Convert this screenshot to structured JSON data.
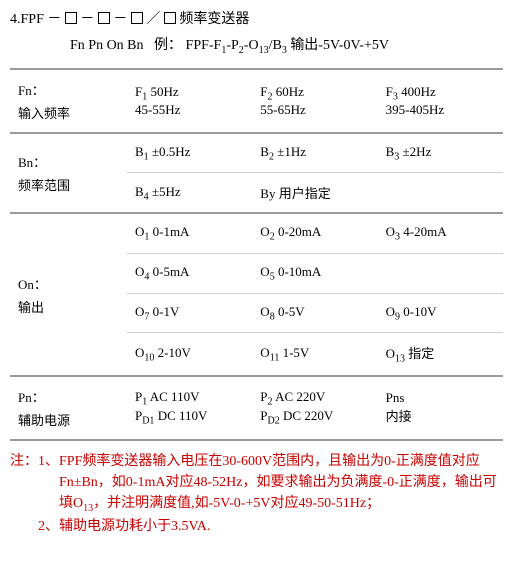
{
  "colors": {
    "text": "#000000",
    "border_strong": "#9a9a9a",
    "border_thin": "#d0d0d0",
    "note": "#ca0000",
    "background": "#ffffff"
  },
  "typography": {
    "base_font": "SimSun",
    "base_size_pt": 10.5,
    "sub_size_pt": 7.5
  },
  "header": {
    "line1_prefix": "4.FPF －",
    "line1_suffix": " 频率变送器",
    "separator_dash": "－",
    "separator_slash": "／",
    "line2_left": "Fn Pn On Bn",
    "line2_example_label": "例：",
    "line2_example_code_1": "FPF-F",
    "line2_example_sub_1": "1",
    "line2_example_code_2": "-P",
    "line2_example_sub_2": "2",
    "line2_example_code_3": "-O",
    "line2_example_sub_3": "13",
    "line2_example_code_4": "/B",
    "line2_example_sub_4": "3",
    "line2_example_tail": " 输出-5V-0V-+5V"
  },
  "rows": {
    "fn": {
      "label_top": "Fn：",
      "label_cn": "输入频率",
      "c1a": "F",
      "c1s": "1",
      "c1b": "  50Hz",
      "c1line2": "45-55Hz",
      "c2a": "F",
      "c2s": "2",
      "c2b": "  60Hz",
      "c2line2": "55-65Hz",
      "c3a": "F",
      "c3s": "3",
      "c3b": "  400Hz",
      "c3line2": "395-405Hz"
    },
    "bn": {
      "label_top": "Bn：",
      "label_cn": "频率范围",
      "r1c1a": "B",
      "r1c1s": "1",
      "r1c1b": "  ±0.5Hz",
      "r1c2a": "B",
      "r1c2s": "2",
      "r1c2b": "  ±1Hz",
      "r1c3a": "B",
      "r1c3s": "3",
      "r1c3b": "  ±2Hz",
      "r2c1a": "B",
      "r2c1s": "4",
      "r2c1b": "  ±5Hz",
      "r2c2": "By 用户指定"
    },
    "on": {
      "label_top": "On：",
      "label_cn": "输出",
      "r1c1a": "O",
      "r1c1s": "1",
      "r1c1b": "  0-1mA",
      "r1c2a": "O",
      "r1c2s": "2",
      "r1c2b": "  0-20mA",
      "r1c3a": "O",
      "r1c3s": "3",
      "r1c3b": "  4-20mA",
      "r2c1a": "O",
      "r2c1s": "4",
      "r2c1b": "  0-5mA",
      "r2c2a": "O",
      "r2c2s": "5",
      "r2c2b": "  0-10mA",
      "r3c1a": "O",
      "r3c1s": "7",
      "r3c1b": "  0-1V",
      "r3c2a": "O",
      "r3c2s": "8",
      "r3c2b": "  0-5V",
      "r3c3a": "O",
      "r3c3s": "9",
      "r3c3b": "  0-10V",
      "r4c1a": "O",
      "r4c1s": "10",
      "r4c1b": "  2-10V",
      "r4c2a": "O",
      "r4c2s": "11",
      "r4c2b": "  1-5V",
      "r4c3a": "O",
      "r4c3s": "13",
      "r4c3b": "  指定"
    },
    "pn": {
      "label_top": "Pn：",
      "label_cn": "辅助电源",
      "r1c1a": "P",
      "r1c1s": "1",
      "r1c1b": "  AC 110V",
      "r1c2a": "P",
      "r1c2s": "2",
      "r1c2b": "  AC 220V",
      "r1c3a": "Pns",
      "r2c1a": "P",
      "r2c1s": "D1",
      "r2c1b": "  DC 110V",
      "r2c2a": "P",
      "r2c2s": "D2",
      "r2c2b": "  DC 220V",
      "r2c3": "内接"
    }
  },
  "notes": {
    "prefix": "注：",
    "n1_label": "1、",
    "n1_body_1": "FPF频率变送器输入电压在30-600V范围内，且输出为0-正满度值对应Fn±Bn，如0-1mA对应48-52Hz，如要求输出为负满度-0-正满度，输出可填O",
    "n1_sub": "13",
    "n1_body_2": "，并注明满度值,如-5V-0-+5V对应49-50-51Hz；",
    "n2_label": "2、",
    "n2_body": "辅助电源功耗小于3.5VA."
  }
}
